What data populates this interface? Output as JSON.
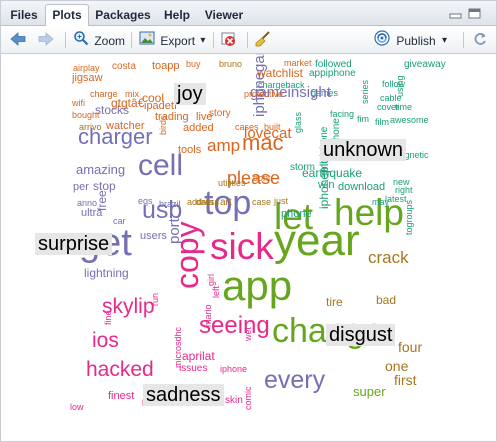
{
  "tabs": [
    {
      "label": "Files",
      "active": false
    },
    {
      "label": "Plots",
      "active": true
    },
    {
      "label": "Packages",
      "active": false
    },
    {
      "label": "Help",
      "active": false
    },
    {
      "label": "Viewer",
      "active": false
    }
  ],
  "toolbar": {
    "zoom_label": "Zoom",
    "export_label": "Export",
    "export_arrow": "▾",
    "publish_label": "Publish",
    "publish_arrow": "▾"
  },
  "icons": {
    "back": "arrow-left-icon",
    "forward": "arrow-right-icon",
    "zoom": "magnifier-icon",
    "export": "export-image-icon",
    "remove": "remove-plot-icon",
    "clear": "broom-icon",
    "publish": "publish-icon",
    "refresh": "refresh-icon",
    "minimize": "minimize-icon",
    "maximize": "maximize-icon"
  },
  "colors": {
    "orange": "#d9661f",
    "teal": "#1b9e77",
    "purple": "#7570b3",
    "magenta": "#e7298a",
    "green": "#66a61e",
    "gold": "#a6761d",
    "gray": "#666666"
  },
  "wordcloud": {
    "emotions": [
      "joy",
      "unknown",
      "surprise",
      "disgust",
      "sadness"
    ],
    "words": [
      "airplay",
      "costa",
      "toapp",
      "buy",
      "bruno",
      "market",
      "followed",
      "giveaway",
      "jigsaw",
      "charge",
      "mix",
      "chargeback",
      "gtgtâ€",
      "ipadetf",
      "watchlist",
      "appiphone",
      "follow",
      "using",
      "wifi",
      "cool",
      "stocks",
      "trading",
      "live",
      "games",
      "facing",
      "series",
      "cable",
      "cover",
      "time",
      "bought",
      "story",
      "fim",
      "film",
      "awesome",
      "arrivo",
      "watcher",
      "birds",
      "added",
      "cases",
      "built",
      "lovecat",
      "gameinsight",
      "iphonegames",
      "protective",
      "charger",
      "amazing",
      "tools",
      "amp",
      "mac",
      "storm",
      "glass",
      "please",
      "dont",
      "onlyiphone",
      "viaiphone",
      "magnetic",
      "cell",
      "usb",
      "top",
      "lightning",
      "let",
      "help",
      "win",
      "download",
      "new",
      "right",
      "latest",
      "per",
      "stop",
      "free",
      "address",
      "data",
      "art",
      "case",
      "just",
      "earthquake",
      "iphoneplus",
      "may",
      "anno",
      "eqs",
      "brazil",
      "utilities",
      "togroups",
      "car",
      "ultra",
      "port",
      "users",
      "phone",
      "get",
      "sick",
      "year",
      "crack",
      "app",
      "copy",
      "skylip",
      "ios",
      "seeing",
      "change",
      "bad",
      "tire",
      "four",
      "one",
      "first",
      "hacked",
      "aprilat",
      "issues",
      "iphone",
      "every",
      "super",
      "finest",
      "levels",
      "spy",
      "skin",
      "comic",
      "low",
      "run",
      "left",
      "girl",
      "mario",
      "wet",
      "microsdhc",
      "fine"
    ]
  }
}
